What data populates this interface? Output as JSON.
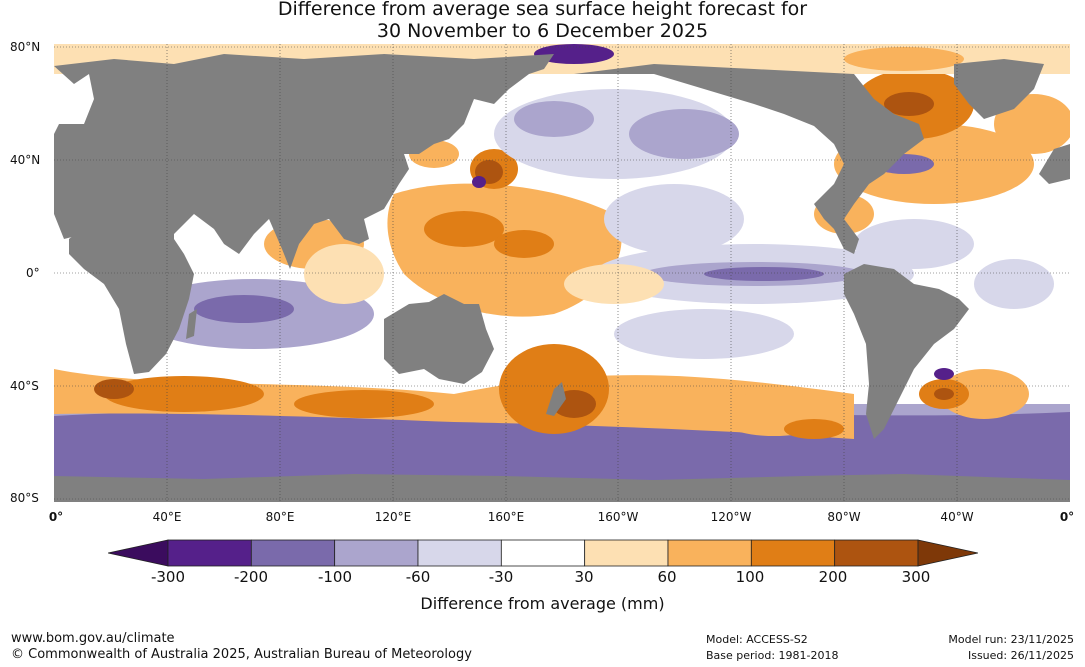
{
  "title": {
    "line1": "Difference from average sea surface height forecast for",
    "line2": "30 November to 6 December 2025"
  },
  "axes": {
    "lat_labels": [
      "80°N",
      "40°N",
      "0°",
      "40°S",
      "80°S"
    ],
    "lon_labels": [
      "0°",
      "40°E",
      "80°E",
      "120°E",
      "160°E",
      "160°W",
      "120°W",
      "80°W",
      "40°W",
      "0°"
    ]
  },
  "legend": {
    "title": "Difference from average (mm)",
    "tick_labels": [
      "-300",
      "-200",
      "-100",
      "-60",
      "-30",
      "30",
      "60",
      "100",
      "200",
      "300"
    ],
    "colors": [
      "#3b0c5e",
      "#55208a",
      "#7a6aab",
      "#aba5cd",
      "#d7d7ea",
      "#ffffff",
      "#fde0b3",
      "#f9b25c",
      "#e07e16",
      "#ad5410",
      "#7e3808"
    ],
    "land_color": "#808080"
  },
  "footer": {
    "website": "www.bom.gov.au/climate",
    "copyright": "© Commonwealth of Australia 2025, Australian Bureau of Meteorology",
    "model": "Model: ACCESS-S2",
    "base_period": "Base period: 1981-2018",
    "model_run": "Model run: 23/11/2025",
    "issued": "Issued: 26/11/2025"
  }
}
